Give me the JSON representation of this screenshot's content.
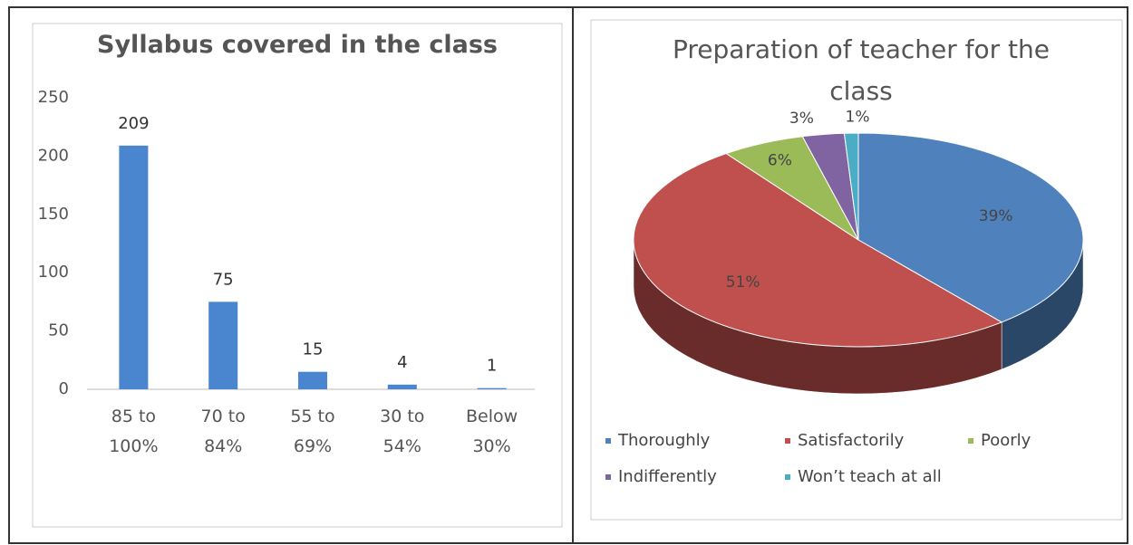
{
  "chart_data": [
    {
      "type": "bar",
      "title": "Syllabus covered in the class",
      "categories": [
        "85 to 100%",
        "70 to 84%",
        "55 to 69%",
        "30 to 54%",
        "Below 30%"
      ],
      "values": [
        209,
        75,
        15,
        4,
        1
      ],
      "color": "#4a86d0",
      "ylim": [
        0,
        250
      ],
      "yticks": [
        0,
        50,
        100,
        150,
        200,
        250
      ],
      "grid": false
    },
    {
      "type": "pie",
      "title": "Preparation of teacher for the class",
      "categories": [
        "Thoroughly",
        "Satisfactorily",
        "Poorly",
        "Indifferently",
        "Won’t teach at all"
      ],
      "values": [
        39,
        51,
        6,
        3,
        1
      ],
      "value_labels": [
        "39%",
        "51%",
        "6%",
        "3%",
        "1%"
      ],
      "colors": [
        "#4f81bd",
        "#c0504d",
        "#9bbb59",
        "#8064a2",
        "#4bacc6"
      ],
      "legend": "bottom"
    }
  ]
}
